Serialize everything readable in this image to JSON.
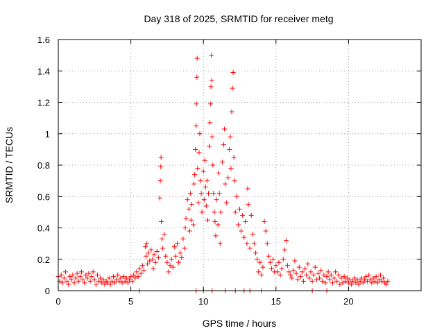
{
  "chart_data": {
    "type": "scatter",
    "title": "Day 318 of 2025, SRMTID for receiver metg",
    "xlabel": "GPS time / hours",
    "ylabel": "SRMTID / TECUs",
    "xlim": [
      0,
      25
    ],
    "ylim": [
      0,
      1.6
    ],
    "x_ticks": [
      0,
      5,
      10,
      15,
      20
    ],
    "y_ticks": [
      0,
      0.2,
      0.4,
      0.6,
      0.8,
      1,
      1.2,
      1.4,
      1.6
    ],
    "x_tick_labels": [
      "0",
      "5",
      "10",
      "15",
      "20"
    ],
    "y_tick_labels": [
      "0",
      "0.2",
      "0.4",
      "0.6",
      "0.8",
      "1",
      "1.2",
      "1.4",
      "1.6"
    ],
    "grid": true,
    "marker": "+",
    "color": "#ff0000",
    "series": [
      {
        "name": "SRMTID",
        "points": [
          [
            0.0,
            0.09
          ],
          [
            0.1,
            0.06
          ],
          [
            0.2,
            0.1
          ],
          [
            0.3,
            0.05
          ],
          [
            0.4,
            0.08
          ],
          [
            0.5,
            0.12
          ],
          [
            0.6,
            0.06
          ],
          [
            0.7,
            0.04
          ],
          [
            0.8,
            0.09
          ],
          [
            0.9,
            0.07
          ],
          [
            1.0,
            0.1
          ],
          [
            1.1,
            0.05
          ],
          [
            1.2,
            0.08
          ],
          [
            1.3,
            0.11
          ],
          [
            1.4,
            0.06
          ],
          [
            1.5,
            0.09
          ],
          [
            1.6,
            0.12
          ],
          [
            1.7,
            0.07
          ],
          [
            1.8,
            0.05
          ],
          [
            1.9,
            0.1
          ],
          [
            2.0,
            0.08
          ],
          [
            2.1,
            0.11
          ],
          [
            2.2,
            0.06
          ],
          [
            2.3,
            0.09
          ],
          [
            2.4,
            0.12
          ],
          [
            2.5,
            0.07
          ],
          [
            2.6,
            0.04
          ],
          [
            2.7,
            0.1
          ],
          [
            2.8,
            0.06
          ],
          [
            2.9,
            0.08
          ],
          [
            3.0,
            0.05
          ],
          [
            3.1,
            0.07
          ],
          [
            3.2,
            0.04
          ],
          [
            3.3,
            0.06
          ],
          [
            3.4,
            0.05
          ],
          [
            3.5,
            0.08
          ],
          [
            3.6,
            0.04
          ],
          [
            3.7,
            0.06
          ],
          [
            3.8,
            0.09
          ],
          [
            3.9,
            0.05
          ],
          [
            4.0,
            0.07
          ],
          [
            4.1,
            0.1
          ],
          [
            4.2,
            0.06
          ],
          [
            4.3,
            0.08
          ],
          [
            4.4,
            0.05
          ],
          [
            4.5,
            0.09
          ],
          [
            4.6,
            0.06
          ],
          [
            4.7,
            0.08
          ],
          [
            4.8,
            0.05
          ],
          [
            4.9,
            0.07
          ],
          [
            5.0,
            0.09
          ],
          [
            5.1,
            0.06
          ],
          [
            5.2,
            0.1
          ],
          [
            5.3,
            0.08
          ],
          [
            5.4,
            0.12
          ],
          [
            5.5,
            0.09
          ],
          [
            5.6,
            0.14
          ],
          [
            5.7,
            0.11
          ],
          [
            5.8,
            0.16
          ],
          [
            5.9,
            0.13
          ],
          [
            6.0,
            0.28
          ],
          [
            6.05,
            0.22
          ],
          [
            6.1,
            0.3
          ],
          [
            6.15,
            0.17
          ],
          [
            6.2,
            0.24
          ],
          [
            6.3,
            0.19
          ],
          [
            6.4,
            0.26
          ],
          [
            6.5,
            0.2
          ],
          [
            6.55,
            0.14
          ],
          [
            6.6,
            0.23
          ],
          [
            6.7,
            0.18
          ],
          [
            6.8,
            0.25
          ],
          [
            6.9,
            0.21
          ],
          [
            7.0,
            0.59
          ],
          [
            7.03,
            0.7
          ],
          [
            7.06,
            0.79
          ],
          [
            7.08,
            0.85
          ],
          [
            7.1,
            0.44
          ],
          [
            7.15,
            0.33
          ],
          [
            7.2,
            0.27
          ],
          [
            7.3,
            0.36
          ],
          [
            7.4,
            0.22
          ],
          [
            7.5,
            0.18
          ],
          [
            7.6,
            0.12
          ],
          [
            7.7,
            0.16
          ],
          [
            7.8,
            0.2
          ],
          [
            7.9,
            0.15
          ],
          [
            8.0,
            0.28
          ],
          [
            8.1,
            0.22
          ],
          [
            8.2,
            0.3
          ],
          [
            8.3,
            0.18
          ],
          [
            8.4,
            0.24
          ],
          [
            8.5,
            0.21
          ],
          [
            8.6,
            0.33
          ],
          [
            8.7,
            0.27
          ],
          [
            8.75,
            0.4
          ],
          [
            8.8,
            0.46
          ],
          [
            8.9,
            0.58
          ],
          [
            9.0,
            0.52
          ],
          [
            9.05,
            0.38
          ],
          [
            9.1,
            0.62
          ],
          [
            9.15,
            0.45
          ],
          [
            9.2,
            0.55
          ],
          [
            9.3,
            0.42
          ],
          [
            9.35,
            0.68
          ],
          [
            9.4,
            0.74
          ],
          [
            9.45,
            0.9
          ],
          [
            9.5,
            1.05
          ],
          [
            9.52,
            1.19
          ],
          [
            9.55,
            1.36
          ],
          [
            9.57,
            1.48
          ],
          [
            9.6,
            0.78
          ],
          [
            9.65,
            0.56
          ],
          [
            9.7,
            0.88
          ],
          [
            9.75,
            1.0
          ],
          [
            9.8,
            0.7
          ],
          [
            9.85,
            0.62
          ],
          [
            9.9,
            0.5
          ],
          [
            10.0,
            0.76
          ],
          [
            10.05,
            0.58
          ],
          [
            10.1,
            0.83
          ],
          [
            10.15,
            0.66
          ],
          [
            10.2,
            0.54
          ],
          [
            10.25,
            0.7
          ],
          [
            10.3,
            0.45
          ],
          [
            10.35,
            0.62
          ],
          [
            10.4,
            0.92
          ],
          [
            10.45,
            1.07
          ],
          [
            10.5,
            1.19
          ],
          [
            10.52,
            1.3
          ],
          [
            10.55,
            1.5
          ],
          [
            10.58,
            1.34
          ],
          [
            10.6,
            0.98
          ],
          [
            10.65,
            0.8
          ],
          [
            10.7,
            0.62
          ],
          [
            10.75,
            0.5
          ],
          [
            10.8,
            0.44
          ],
          [
            10.85,
            0.35
          ],
          [
            10.9,
            0.58
          ],
          [
            11.0,
            0.42
          ],
          [
            11.05,
            0.75
          ],
          [
            11.1,
            0.62
          ],
          [
            11.15,
            0.3
          ],
          [
            11.2,
            0.5
          ],
          [
            11.3,
            0.82
          ],
          [
            11.4,
            0.93
          ],
          [
            11.45,
            1.03
          ],
          [
            11.5,
            0.68
          ],
          [
            11.6,
            0.56
          ],
          [
            11.7,
            0.72
          ],
          [
            11.8,
            0.9
          ],
          [
            11.85,
            0.98
          ],
          [
            11.9,
            0.78
          ],
          [
            11.95,
            1.14
          ],
          [
            12.0,
            1.29
          ],
          [
            12.05,
            1.39
          ],
          [
            12.1,
            0.85
          ],
          [
            12.15,
            0.7
          ],
          [
            12.2,
            0.5
          ],
          [
            12.3,
            0.6
          ],
          [
            12.4,
            0.42
          ],
          [
            12.5,
            0.52
          ],
          [
            12.6,
            0.38
          ],
          [
            12.7,
            0.48
          ],
          [
            12.8,
            0.34
          ],
          [
            12.9,
            0.44
          ],
          [
            13.0,
            0.3
          ],
          [
            13.05,
            0.65
          ],
          [
            13.1,
            0.55
          ],
          [
            13.2,
            0.27
          ],
          [
            13.3,
            0.48
          ],
          [
            13.4,
            0.36
          ],
          [
            13.5,
            0.3
          ],
          [
            13.6,
            0.24
          ],
          [
            13.7,
            0.2
          ],
          [
            13.8,
            0.12
          ],
          [
            13.9,
            0.18
          ],
          [
            14.0,
            0.1
          ],
          [
            14.1,
            0.15
          ],
          [
            14.2,
            0.44
          ],
          [
            14.3,
            0.38
          ],
          [
            14.4,
            0.3
          ],
          [
            14.5,
            0.22
          ],
          [
            14.6,
            0.18
          ],
          [
            14.7,
            0.14
          ],
          [
            14.8,
            0.2
          ],
          [
            14.9,
            0.12
          ],
          [
            15.0,
            0.16
          ],
          [
            15.1,
            0.12
          ],
          [
            15.2,
            0.18
          ],
          [
            15.3,
            0.1
          ],
          [
            15.4,
            0.14
          ],
          [
            15.5,
            0.2
          ],
          [
            15.6,
            0.26
          ],
          [
            15.7,
            0.32
          ],
          [
            15.8,
            0.16
          ],
          [
            15.9,
            0.12
          ],
          [
            16.0,
            0.1
          ],
          [
            16.1,
            0.08
          ],
          [
            16.2,
            0.13
          ],
          [
            16.3,
            0.19
          ],
          [
            16.4,
            0.11
          ],
          [
            16.5,
            0.07
          ],
          [
            16.6,
            0.15
          ],
          [
            16.7,
            0.09
          ],
          [
            16.8,
            0.12
          ],
          [
            16.9,
            0.06
          ],
          [
            17.0,
            0.14
          ],
          [
            17.1,
            0.1
          ],
          [
            17.2,
            0.17
          ],
          [
            17.3,
            0.08
          ],
          [
            17.4,
            0.12
          ],
          [
            17.5,
            0.06
          ],
          [
            17.6,
            0.1
          ],
          [
            17.7,
            0.15
          ],
          [
            17.8,
            0.07
          ],
          [
            17.9,
            0.11
          ],
          [
            18.0,
            0.08
          ],
          [
            18.1,
            0.13
          ],
          [
            18.2,
            0.06
          ],
          [
            18.3,
            0.1
          ],
          [
            18.4,
            0.05
          ],
          [
            18.5,
            0.09
          ],
          [
            18.6,
            0.12
          ],
          [
            18.7,
            0.07
          ],
          [
            18.8,
            0.1
          ],
          [
            18.9,
            0.05
          ],
          [
            19.0,
            0.08
          ],
          [
            19.1,
            0.12
          ],
          [
            19.2,
            0.06
          ],
          [
            19.3,
            0.1
          ],
          [
            19.4,
            0.04
          ],
          [
            19.5,
            0.08
          ],
          [
            19.6,
            0.05
          ],
          [
            19.7,
            0.09
          ],
          [
            19.8,
            0.06
          ],
          [
            19.9,
            0.08
          ],
          [
            20.0,
            0.05
          ],
          [
            20.1,
            0.07
          ],
          [
            20.2,
            0.04
          ],
          [
            20.3,
            0.06
          ],
          [
            20.4,
            0.08
          ],
          [
            20.5,
            0.05
          ],
          [
            20.6,
            0.07
          ],
          [
            20.7,
            0.04
          ],
          [
            20.8,
            0.06
          ],
          [
            20.9,
            0.08
          ],
          [
            21.0,
            0.05
          ],
          [
            21.1,
            0.07
          ],
          [
            21.2,
            0.09
          ],
          [
            21.3,
            0.06
          ],
          [
            21.4,
            0.1
          ],
          [
            21.5,
            0.07
          ],
          [
            21.6,
            0.05
          ],
          [
            21.7,
            0.08
          ],
          [
            21.8,
            0.06
          ],
          [
            21.9,
            0.09
          ],
          [
            22.0,
            0.05
          ],
          [
            22.1,
            0.07
          ],
          [
            22.2,
            0.1
          ],
          [
            22.3,
            0.06
          ],
          [
            22.4,
            0.08
          ],
          [
            22.5,
            0.05
          ],
          [
            22.6,
            0.04
          ],
          [
            22.7,
            0.06
          ],
          [
            5.6,
            0.0
          ],
          [
            9.5,
            0.0
          ],
          [
            10.0,
            0.0
          ],
          [
            10.6,
            0.0
          ],
          [
            11.5,
            0.0
          ],
          [
            12.2,
            0.0
          ],
          [
            12.8,
            0.0
          ],
          [
            13.2,
            0.0
          ],
          [
            14.0,
            0.0
          ],
          [
            17.5,
            0.0
          ],
          [
            18.5,
            0.0
          ]
        ]
      }
    ]
  }
}
